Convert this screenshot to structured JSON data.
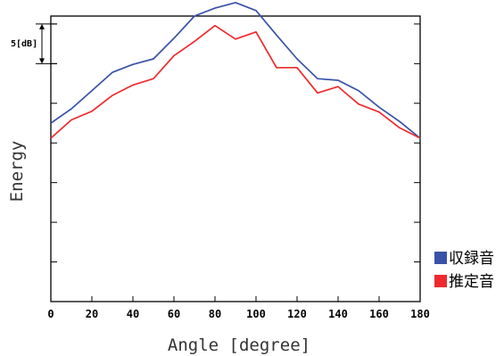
{
  "chart_data": {
    "type": "line",
    "xlabel": "Angle [degree]",
    "ylabel": "Energy",
    "xlim": [
      0,
      180
    ],
    "x_ticks": [
      0,
      20,
      40,
      60,
      80,
      100,
      120,
      140,
      160,
      180
    ],
    "y_ticks_dB": [
      -25,
      -20,
      -15,
      -10,
      -5,
      0,
      5
    ],
    "ylim_dB": [
      -30,
      6
    ],
    "y_tick_labels_shown": false,
    "grid": false,
    "legend_position": "bottom-right",
    "scale_annotation": {
      "label": "5[dB]",
      "from_dB": 0,
      "to_dB": 5
    },
    "x": [
      0,
      10,
      20,
      30,
      40,
      50,
      60,
      70,
      80,
      90,
      100,
      110,
      120,
      130,
      140,
      150,
      160,
      170,
      180
    ],
    "series": [
      {
        "name": "収録音",
        "color": "#3952a8",
        "values": [
          -7.5,
          -5.7,
          -3.4,
          -1.1,
          -0.1,
          0.6,
          3.2,
          6.0,
          7.0,
          7.7,
          6.7,
          3.6,
          0.6,
          -1.9,
          -2.1,
          -3.4,
          -5.5,
          -7.3,
          -9.4
        ]
      },
      {
        "name": "推定音",
        "color": "#ee2a2e",
        "values": [
          -9.4,
          -7.1,
          -6.0,
          -4.0,
          -2.7,
          -1.9,
          1.0,
          2.8,
          4.8,
          3.1,
          4.0,
          -0.5,
          -0.5,
          -3.7,
          -2.9,
          -5.1,
          -6.1,
          -8.1,
          -9.4
        ]
      }
    ]
  }
}
